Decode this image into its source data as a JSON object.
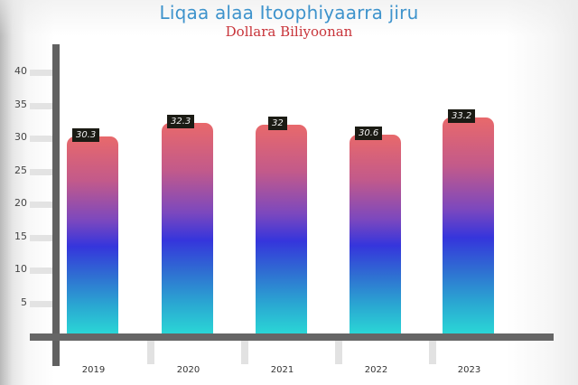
{
  "chart_data": {
    "type": "bar",
    "title": "Liqaa alaa Itoophiyaarra jiru",
    "subtitle": "Dollara Biliyoonan",
    "categories": [
      "2019",
      "2020",
      "2021",
      "2022",
      "2023"
    ],
    "values": [
      30.3,
      32.3,
      32,
      30.6,
      33.2
    ],
    "value_labels": [
      "30.3",
      "32.3",
      "32",
      "30.6",
      "33.2"
    ],
    "xlabel": "",
    "ylabel": "",
    "ylim": [
      0,
      40
    ],
    "yticks": [
      "40",
      "35",
      "30",
      "25",
      "20",
      "15",
      "10",
      "5"
    ],
    "grid": false,
    "legend": null,
    "colors": {
      "title": "#3e93cc",
      "subtitle": "#c8343a",
      "bar_gradient_top": "#e8696b",
      "bar_gradient_mid": "#3535dc",
      "bar_gradient_bottom": "#2adad6",
      "axis": "#616161"
    }
  }
}
